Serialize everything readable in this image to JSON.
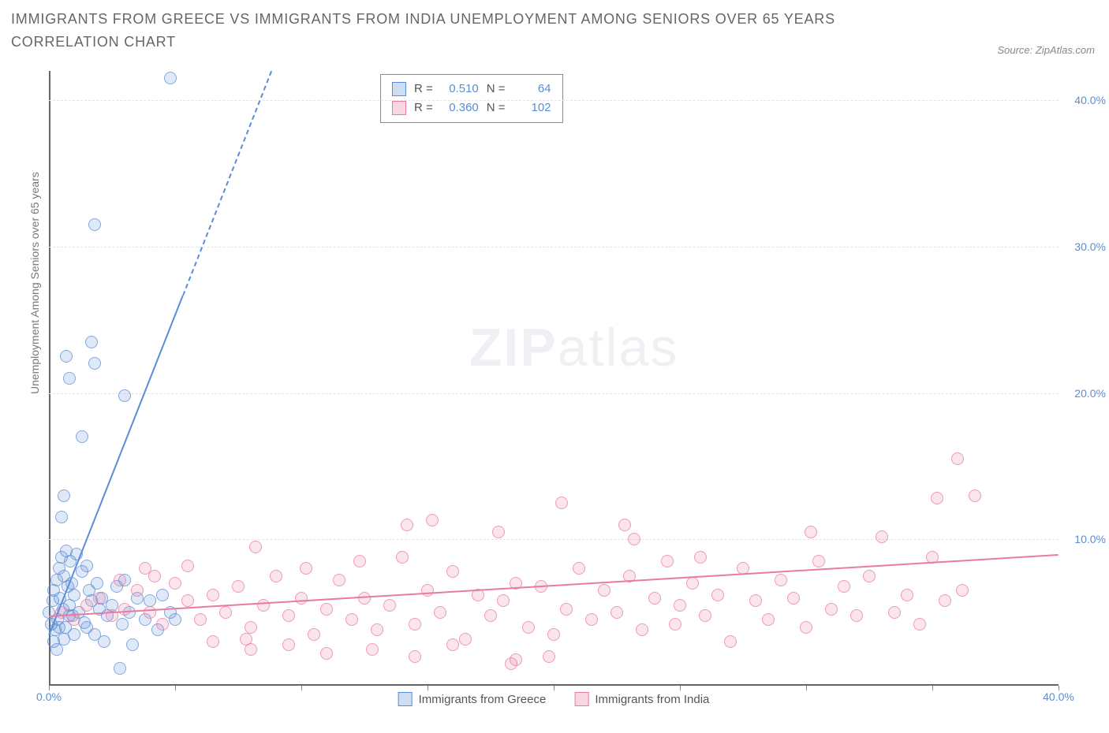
{
  "title": "IMMIGRANTS FROM GREECE VS IMMIGRANTS FROM INDIA UNEMPLOYMENT AMONG SENIORS OVER 65 YEARS CORRELATION CHART",
  "source_prefix": "Source: ",
  "source_name": "ZipAtlas.com",
  "yaxis_label": "Unemployment Among Seniors over 65 years",
  "watermark_bold": "ZIP",
  "watermark_light": "atlas",
  "chart": {
    "type": "scatter",
    "background_color": "#ffffff",
    "grid_color": "#e4e4e4",
    "axis_color": "#666666",
    "tick_label_color": "#5b8dd6",
    "xlim": [
      0,
      40
    ],
    "ylim": [
      0,
      42
    ],
    "x_ticks": [
      0,
      5,
      10,
      15,
      20,
      25,
      30,
      35,
      40
    ],
    "x_tick_labels": {
      "0": "0.0%",
      "40": "40.0%"
    },
    "y_ticks": [
      10,
      20,
      30,
      40
    ],
    "y_tick_labels": {
      "10": "10.0%",
      "20": "20.0%",
      "30": "30.0%",
      "40": "40.0%"
    },
    "marker_radius": 8,
    "marker_fill_opacity": 0.2,
    "marker_stroke_opacity": 0.7,
    "trend_line_width": 2,
    "series": [
      {
        "name": "Immigrants from Greece",
        "color": "#5b8dd6",
        "r": "0.510",
        "n": "64",
        "trend": {
          "x1": 0,
          "y1": 3.5,
          "x2": 8.8,
          "y2": 42,
          "dash_from_x": 5.3
        },
        "points": [
          [
            0.0,
            5.0
          ],
          [
            0.1,
            4.2
          ],
          [
            0.15,
            5.8
          ],
          [
            0.2,
            6.5
          ],
          [
            0.25,
            3.8
          ],
          [
            0.3,
            7.2
          ],
          [
            0.35,
            4.5
          ],
          [
            0.4,
            8.0
          ],
          [
            0.45,
            6.0
          ],
          [
            0.5,
            8.8
          ],
          [
            0.55,
            5.2
          ],
          [
            0.6,
            7.5
          ],
          [
            0.65,
            4.0
          ],
          [
            0.7,
            9.2
          ],
          [
            0.75,
            6.8
          ],
          [
            0.8,
            5.5
          ],
          [
            0.85,
            8.5
          ],
          [
            0.9,
            7.0
          ],
          [
            0.95,
            4.8
          ],
          [
            1.0,
            6.2
          ],
          [
            1.1,
            9.0
          ],
          [
            1.2,
            5.0
          ],
          [
            1.3,
            7.8
          ],
          [
            1.4,
            4.3
          ],
          [
            1.5,
            8.2
          ],
          [
            1.6,
            6.5
          ],
          [
            1.7,
            5.8
          ],
          [
            1.8,
            3.5
          ],
          [
            1.9,
            7.0
          ],
          [
            2.0,
            5.2
          ],
          [
            2.1,
            6.0
          ],
          [
            2.3,
            4.8
          ],
          [
            2.5,
            5.5
          ],
          [
            2.7,
            6.8
          ],
          [
            2.9,
            4.2
          ],
          [
            3.0,
            7.2
          ],
          [
            3.2,
            5.0
          ],
          [
            3.5,
            6.0
          ],
          [
            3.8,
            4.5
          ],
          [
            4.0,
            5.8
          ],
          [
            4.3,
            3.8
          ],
          [
            4.5,
            6.2
          ],
          [
            4.8,
            5.0
          ],
          [
            5.0,
            4.5
          ],
          [
            2.8,
            1.2
          ],
          [
            3.3,
            2.8
          ],
          [
            0.2,
            3.0
          ],
          [
            0.3,
            2.5
          ],
          [
            0.5,
            11.5
          ],
          [
            0.6,
            13.0
          ],
          [
            1.3,
            17.0
          ],
          [
            0.8,
            21.0
          ],
          [
            0.7,
            22.5
          ],
          [
            1.8,
            22.0
          ],
          [
            1.7,
            23.5
          ],
          [
            3.0,
            19.8
          ],
          [
            1.8,
            31.5
          ],
          [
            4.8,
            41.5
          ],
          [
            0.4,
            4.0
          ],
          [
            0.6,
            3.2
          ],
          [
            0.8,
            4.8
          ],
          [
            1.0,
            3.5
          ],
          [
            1.5,
            4.0
          ],
          [
            2.2,
            3.0
          ]
        ]
      },
      {
        "name": "Immigrants from India",
        "color": "#e87ba3",
        "r": "0.360",
        "n": "102",
        "trend": {
          "x1": 0,
          "y1": 4.8,
          "x2": 40,
          "y2": 9.0,
          "dash_from_x": null
        },
        "points": [
          [
            0.5,
            5.0
          ],
          [
            1.0,
            4.5
          ],
          [
            1.5,
            5.5
          ],
          [
            2.0,
            6.0
          ],
          [
            2.5,
            4.8
          ],
          [
            3.0,
            5.2
          ],
          [
            3.5,
            6.5
          ],
          [
            4.0,
            5.0
          ],
          [
            4.5,
            4.2
          ],
          [
            5.0,
            7.0
          ],
          [
            5.5,
            5.8
          ],
          [
            6.0,
            4.5
          ],
          [
            6.5,
            6.2
          ],
          [
            7.0,
            5.0
          ],
          [
            7.5,
            6.8
          ],
          [
            8.0,
            4.0
          ],
          [
            8.2,
            9.5
          ],
          [
            8.5,
            5.5
          ],
          [
            9.0,
            7.5
          ],
          [
            9.5,
            4.8
          ],
          [
            10.0,
            6.0
          ],
          [
            10.2,
            8.0
          ],
          [
            10.5,
            3.5
          ],
          [
            11.0,
            5.2
          ],
          [
            11.5,
            7.2
          ],
          [
            12.0,
            4.5
          ],
          [
            12.3,
            8.5
          ],
          [
            12.5,
            6.0
          ],
          [
            13.0,
            3.8
          ],
          [
            13.5,
            5.5
          ],
          [
            14.0,
            8.8
          ],
          [
            14.2,
            11.0
          ],
          [
            14.5,
            4.2
          ],
          [
            15.0,
            6.5
          ],
          [
            15.2,
            11.3
          ],
          [
            15.5,
            5.0
          ],
          [
            16.0,
            7.8
          ],
          [
            16.5,
            3.2
          ],
          [
            17.0,
            6.2
          ],
          [
            17.5,
            4.8
          ],
          [
            17.8,
            10.5
          ],
          [
            18.0,
            5.8
          ],
          [
            18.3,
            1.5
          ],
          [
            18.5,
            7.0
          ],
          [
            19.0,
            4.0
          ],
          [
            19.5,
            6.8
          ],
          [
            20.0,
            3.5
          ],
          [
            20.3,
            12.5
          ],
          [
            20.5,
            5.2
          ],
          [
            21.0,
            8.0
          ],
          [
            21.5,
            4.5
          ],
          [
            22.0,
            6.5
          ],
          [
            22.5,
            5.0
          ],
          [
            22.8,
            11.0
          ],
          [
            23.0,
            7.5
          ],
          [
            23.2,
            10.0
          ],
          [
            23.5,
            3.8
          ],
          [
            24.0,
            6.0
          ],
          [
            24.5,
            8.5
          ],
          [
            24.8,
            4.2
          ],
          [
            25.0,
            5.5
          ],
          [
            25.5,
            7.0
          ],
          [
            25.8,
            8.8
          ],
          [
            26.0,
            4.8
          ],
          [
            26.5,
            6.2
          ],
          [
            27.0,
            3.0
          ],
          [
            27.5,
            8.0
          ],
          [
            28.0,
            5.8
          ],
          [
            28.5,
            4.5
          ],
          [
            29.0,
            7.2
          ],
          [
            29.5,
            6.0
          ],
          [
            30.0,
            4.0
          ],
          [
            30.2,
            10.5
          ],
          [
            30.5,
            8.5
          ],
          [
            31.0,
            5.2
          ],
          [
            31.5,
            6.8
          ],
          [
            32.0,
            4.8
          ],
          [
            32.5,
            7.5
          ],
          [
            33.0,
            10.2
          ],
          [
            33.5,
            5.0
          ],
          [
            34.0,
            6.2
          ],
          [
            34.5,
            4.2
          ],
          [
            35.0,
            8.8
          ],
          [
            35.2,
            12.8
          ],
          [
            35.5,
            5.8
          ],
          [
            36.0,
            15.5
          ],
          [
            36.2,
            6.5
          ],
          [
            36.7,
            13.0
          ],
          [
            18.5,
            1.8
          ],
          [
            19.8,
            2.0
          ],
          [
            8.0,
            2.5
          ],
          [
            9.5,
            2.8
          ],
          [
            11.0,
            2.2
          ],
          [
            12.8,
            2.5
          ],
          [
            14.5,
            2.0
          ],
          [
            16.0,
            2.8
          ],
          [
            6.5,
            3.0
          ],
          [
            7.8,
            3.2
          ],
          [
            5.5,
            8.2
          ],
          [
            4.2,
            7.5
          ],
          [
            3.8,
            8.0
          ],
          [
            2.8,
            7.2
          ]
        ]
      }
    ]
  },
  "legend_top": {
    "r_label": "R =",
    "n_label": "N ="
  }
}
